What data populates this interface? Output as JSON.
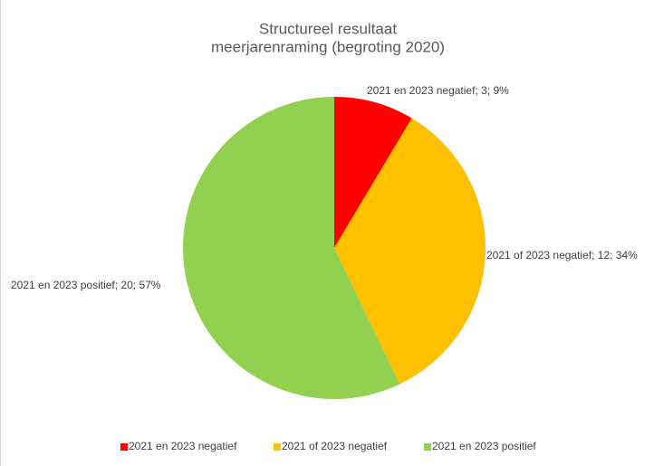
{
  "chart_data": {
    "type": "pie",
    "title": [
      "Structureel resultaat",
      "meerjarenraming (begroting 2020)"
    ],
    "categories": [
      "2021 en 2023 negatief",
      "2021 of 2023 negatief",
      "2021 en 2023 positief"
    ],
    "values": [
      3,
      12,
      20
    ],
    "value_labels": [
      "2021 en 2023 negatief; 3; 9%",
      "2021 of 2023 negatief; 12; 34%",
      "2021 en 2023 positief; 20; 57%"
    ],
    "colors": [
      "#ff0000",
      "#ffc000",
      "#92d050"
    ],
    "legend": "bottom"
  }
}
